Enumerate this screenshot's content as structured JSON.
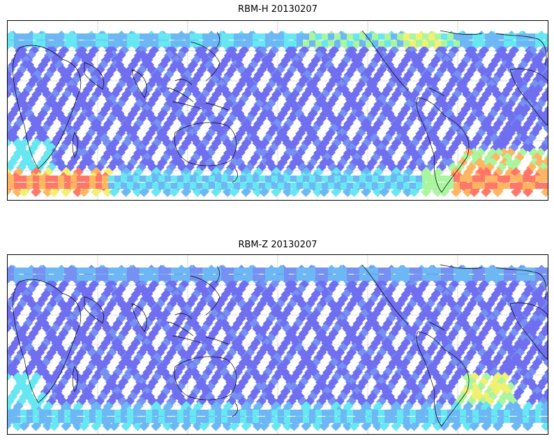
{
  "panels": [
    {
      "title": "RBM-H 20130207",
      "variant": "H"
    },
    {
      "title": "RBM-Z 20130207",
      "variant": "Z"
    }
  ],
  "palette": {
    "low": "#6868f0",
    "low2": "#6f8cf2",
    "mid": "#66b4f5",
    "cyan": "#5ee6f2",
    "green": "#a6f59a",
    "yellow": "#f2f06a",
    "orange": "#ffb25a",
    "red": "#ff7060",
    "coast": "#000000",
    "grid": "#bcbcbc"
  }
}
